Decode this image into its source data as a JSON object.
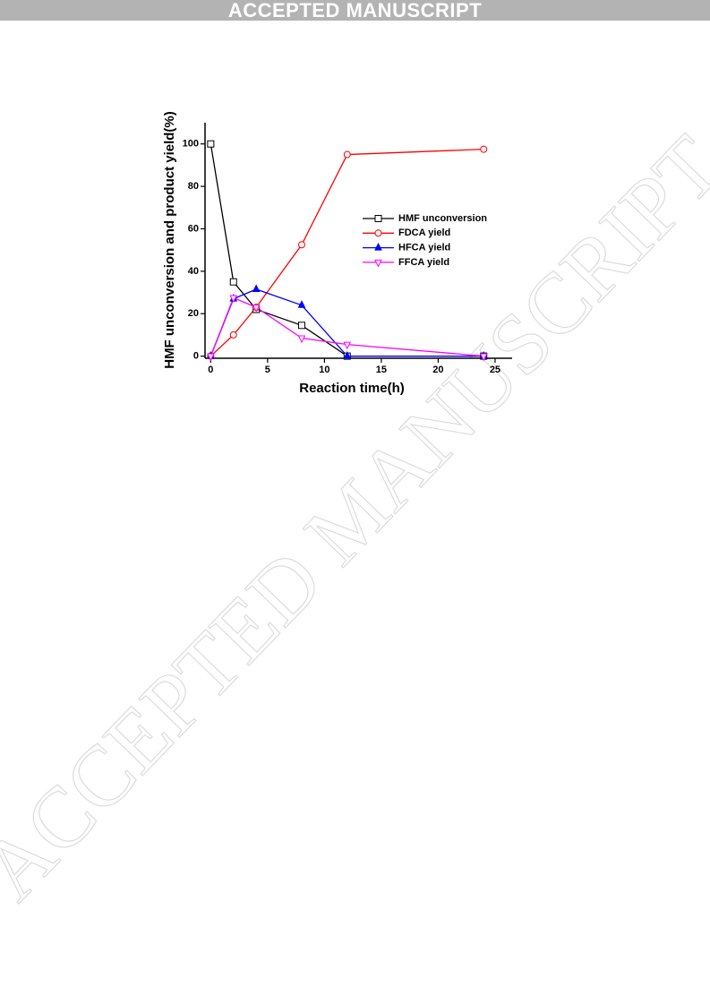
{
  "banner": "ACCEPTED MANUSCRIPT",
  "watermark": "ACCEPTED MANUSCRIPT",
  "chart_data": {
    "type": "line",
    "x_label": "Reaction time(h)",
    "y_label": "HMF unconversion and product yield(%)",
    "x": [
      0,
      2,
      4,
      8,
      12,
      24
    ],
    "series": [
      {
        "name": "HMF unconversion",
        "color": "#000000",
        "marker": "square",
        "values": [
          100,
          35,
          22,
          14.5,
          0,
          0
        ]
      },
      {
        "name": "FDCA yield",
        "color": "#ff0000",
        "marker": "circle",
        "values": [
          0,
          10,
          23,
          52.5,
          95,
          97.5
        ]
      },
      {
        "name": "HFCA yield",
        "color": "#0000ff",
        "marker": "triangle-up",
        "values": [
          0,
          27,
          31.5,
          24,
          0,
          0
        ]
      },
      {
        "name": "FFCA yield",
        "color": "#ff00ff",
        "marker": "triangle-down",
        "values": [
          0,
          27.5,
          23,
          8.5,
          5.5,
          0
        ]
      }
    ],
    "xlim": [
      -0.5,
      26.5
    ],
    "xticks": [
      0,
      5,
      10,
      15,
      20,
      25
    ],
    "ylim": [
      -1,
      110
    ],
    "yticks": [
      0,
      20,
      40,
      60,
      80,
      100
    ],
    "legend": "right"
  }
}
